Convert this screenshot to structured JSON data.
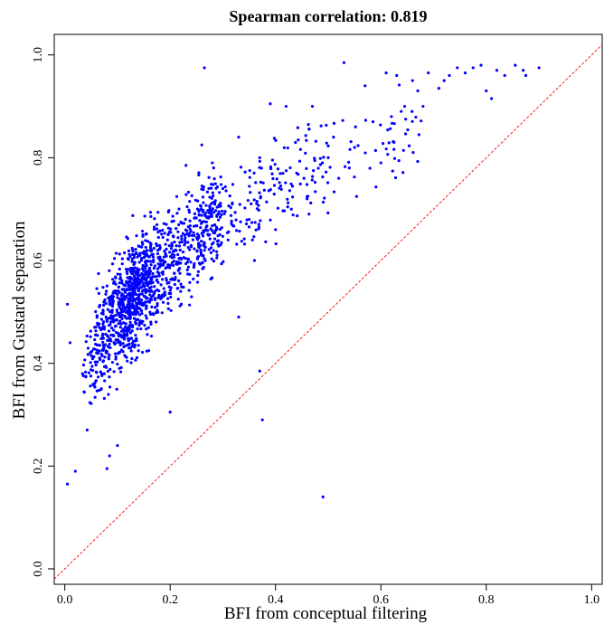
{
  "chart_data": {
    "type": "scatter",
    "title": "Spearman correlation: 0.819",
    "xlabel": "BFI from conceptual filtering",
    "ylabel": "BFI from Gustard separation",
    "xlim": [
      -0.02,
      1.02
    ],
    "ylim": [
      -0.03,
      1.04
    ],
    "x_ticks": [
      0.0,
      0.2,
      0.4,
      0.6,
      0.8,
      1.0
    ],
    "x_tick_labels": [
      "0.0",
      "0.2",
      "0.4",
      "0.6",
      "0.8",
      "1.0"
    ],
    "y_ticks": [
      0.0,
      0.2,
      0.4,
      0.6,
      0.8,
      1.0
    ],
    "y_tick_labels": [
      "0.0",
      "0.2",
      "0.4",
      "0.6",
      "0.8",
      "1.0"
    ],
    "grid": false,
    "point_color": "#0000ff",
    "reference_line": {
      "style": "dashed",
      "color": "#ff0000",
      "from": [
        -0.02,
        -0.02
      ],
      "to": [
        1.02,
        1.02
      ]
    },
    "n_points": 1500,
    "points": [
      [
        0.005,
        0.165
      ],
      [
        0.02,
        0.19
      ],
      [
        0.08,
        0.195
      ],
      [
        0.1,
        0.24
      ],
      [
        0.085,
        0.22
      ],
      [
        0.2,
        0.305
      ],
      [
        0.375,
        0.29
      ],
      [
        0.49,
        0.14
      ],
      [
        0.37,
        0.385
      ],
      [
        0.33,
        0.49
      ],
      [
        0.265,
        0.975
      ],
      [
        0.53,
        0.985
      ],
      [
        0.005,
        0.515
      ],
      [
        0.01,
        0.44
      ],
      [
        0.42,
        0.9
      ],
      [
        0.47,
        0.9
      ],
      [
        0.55,
        0.82
      ],
      [
        0.57,
        0.94
      ],
      [
        0.585,
        0.87
      ],
      [
        0.6,
        0.79
      ],
      [
        0.61,
        0.965
      ],
      [
        0.62,
        0.88
      ],
      [
        0.625,
        0.83
      ],
      [
        0.63,
        0.96
      ],
      [
        0.645,
        0.9
      ],
      [
        0.66,
        0.95
      ],
      [
        0.67,
        0.93
      ],
      [
        0.68,
        0.9
      ],
      [
        0.69,
        0.965
      ],
      [
        0.71,
        0.935
      ],
      [
        0.72,
        0.95
      ],
      [
        0.73,
        0.96
      ],
      [
        0.745,
        0.975
      ],
      [
        0.76,
        0.965
      ],
      [
        0.775,
        0.975
      ],
      [
        0.79,
        0.98
      ],
      [
        0.8,
        0.93
      ],
      [
        0.81,
        0.915
      ],
      [
        0.82,
        0.97
      ],
      [
        0.835,
        0.96
      ],
      [
        0.855,
        0.98
      ],
      [
        0.87,
        0.97
      ],
      [
        0.875,
        0.96
      ],
      [
        0.9,
        0.975
      ],
      [
        0.33,
        0.84
      ],
      [
        0.37,
        0.8
      ],
      [
        0.39,
        0.905
      ],
      [
        0.41,
        0.745
      ],
      [
        0.44,
        0.77
      ],
      [
        0.46,
        0.72
      ],
      [
        0.5,
        0.8
      ],
      [
        0.51,
        0.84
      ],
      [
        0.52,
        0.76
      ],
      [
        0.54,
        0.78
      ],
      [
        0.28,
        0.79
      ],
      [
        0.3,
        0.74
      ],
      [
        0.26,
        0.825
      ],
      [
        0.23,
        0.785
      ],
      [
        0.36,
        0.6
      ],
      [
        0.4,
        0.66
      ],
      [
        0.43,
        0.7
      ],
      [
        0.31,
        0.64
      ],
      [
        0.35,
        0.68
      ],
      [
        0.22,
        0.54
      ]
    ]
  }
}
